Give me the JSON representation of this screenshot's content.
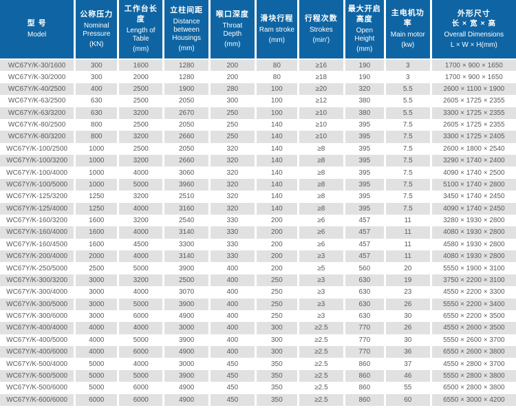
{
  "colors": {
    "header_bg": "#0f65a3",
    "header_text": "#ffffff",
    "row_stripe": "#e1e1e1",
    "body_text": "#58595b"
  },
  "table": {
    "columns": [
      {
        "key": "model",
        "zh": "型 号",
        "zh2": "",
        "en": "Model",
        "unit": ""
      },
      {
        "key": "nominal-pressure",
        "zh": "公称压力",
        "zh2": "",
        "en": "Nominal Pressure",
        "unit": "(KN)"
      },
      {
        "key": "table-length",
        "zh": "工作台长度",
        "zh2": "",
        "en": "Length of Table",
        "unit": "(mm)"
      },
      {
        "key": "housing-distance",
        "zh": "立柱间距",
        "zh2": "",
        "en": "Distance between Housings",
        "unit": "(mm)"
      },
      {
        "key": "throat-depth",
        "zh": "喉口深度",
        "zh2": "",
        "en": "Throat Depth",
        "unit": "(mm)"
      },
      {
        "key": "ram-stroke",
        "zh": "滑块行程",
        "zh2": "",
        "en": "Ram stroke",
        "unit": "(mm)"
      },
      {
        "key": "strokes",
        "zh": "行程次数",
        "zh2": "",
        "en": "Strokes",
        "unit": "(min')"
      },
      {
        "key": "open-height",
        "zh": "最大开启高度",
        "zh2": "",
        "en": "Open Height",
        "unit": "(mm)"
      },
      {
        "key": "main-motor",
        "zh": "主电机功率",
        "zh2": "",
        "en": "Main motor",
        "unit": "(kw)"
      },
      {
        "key": "overall-dimensions",
        "zh": "外形尺寸",
        "zh2": "长 × 宽 × 高",
        "en": "Overall Dimensions",
        "unit": "L × W × H(mm)"
      }
    ],
    "rows": [
      [
        "WC67Y/K-30/1600",
        "300",
        "1600",
        "1280",
        "200",
        "80",
        "≥16",
        "190",
        "3",
        "1700 × 900 × 1650"
      ],
      [
        "WC67Y/K-30/2000",
        "300",
        "2000",
        "1280",
        "200",
        "80",
        "≥18",
        "190",
        "3",
        "1700 × 900 × 1650"
      ],
      [
        "WC67Y/K-40/2500",
        "400",
        "2500",
        "1900",
        "280",
        "100",
        "≥20",
        "320",
        "5.5",
        "2600 × 1100 × 1900"
      ],
      [
        "WC67Y/K-63/2500",
        "630",
        "2500",
        "2050",
        "300",
        "100",
        "≥12",
        "380",
        "5.5",
        "2605 × 1725 × 2355"
      ],
      [
        "WC67Y/K-63/3200",
        "630",
        "3200",
        "2670",
        "250",
        "100",
        "≥10",
        "380",
        "5.5",
        "3300 × 1725 × 2355"
      ],
      [
        "WC67Y/K-80/2500",
        "800",
        "2500",
        "2050",
        "250",
        "140",
        "≥10",
        "395",
        "7.5",
        "2605 × 1725 × 2355"
      ],
      [
        "WC67Y/K-80/3200",
        "800",
        "3200",
        "2660",
        "250",
        "140",
        "≥10",
        "395",
        "7.5",
        "3300 × 1725 × 2405"
      ],
      [
        "WC67Y/K-100/2500",
        "1000",
        "2500",
        "2050",
        "320",
        "140",
        "≥8",
        "395",
        "7.5",
        "2600 × 1800 × 2540"
      ],
      [
        "WC67Y/K-100/3200",
        "1000",
        "3200",
        "2660",
        "320",
        "140",
        "≥8",
        "395",
        "7.5",
        "3290 × 1740 × 2400"
      ],
      [
        "WC67Y/K-100/4000",
        "1000",
        "4000",
        "3060",
        "320",
        "140",
        "≥8",
        "395",
        "7.5",
        "4090 × 1740 × 2500"
      ],
      [
        "WC67Y/K-100/5000",
        "1000",
        "5000",
        "3960",
        "320",
        "140",
        "≥8",
        "395",
        "7.5",
        "5100 × 1740 × 2800"
      ],
      [
        "WC67Y/K-125/3200",
        "1250",
        "3200",
        "2510",
        "320",
        "140",
        "≥8",
        "395",
        "7.5",
        "3450 × 1740 × 2450"
      ],
      [
        "WC67Y/K-125/4000",
        "1250",
        "4000",
        "3160",
        "320",
        "140",
        "≥8",
        "395",
        "7.5",
        "4090 × 1740 × 2450"
      ],
      [
        "WC67Y/K-160/3200",
        "1600",
        "3200",
        "2540",
        "330",
        "200",
        "≥6",
        "457",
        "11",
        "3280 × 1930 × 2800"
      ],
      [
        "WC67Y/K-160/4000",
        "1600",
        "4000",
        "3140",
        "330",
        "200",
        "≥6",
        "457",
        "11",
        "4080 × 1930 × 2800"
      ],
      [
        "WC67Y/K-160/4500",
        "1600",
        "4500",
        "3300",
        "330",
        "200",
        "≥6",
        "457",
        "11",
        "4580 × 1930 × 2800"
      ],
      [
        "WC67Y/K-200/4000",
        "2000",
        "4000",
        "3140",
        "330",
        "200",
        "≥3",
        "457",
        "11",
        "4080 × 1930 × 2800"
      ],
      [
        "WC67Y/K-250/5000",
        "2500",
        "5000",
        "3900",
        "400",
        "200",
        "≥5",
        "560",
        "20",
        "5550 × 1900 × 3100"
      ],
      [
        "WC67Y/K-300/3200",
        "3000",
        "3200",
        "2500",
        "400",
        "250",
        "≥3",
        "630",
        "19",
        "3750 × 2200 × 3100"
      ],
      [
        "WC67Y/K-300/4000",
        "3000",
        "4000",
        "3070",
        "400",
        "250",
        "≥3",
        "630",
        "23",
        "4550 × 2200 × 3300"
      ],
      [
        "WC67Y/K-300/5000",
        "3000",
        "5000",
        "3900",
        "400",
        "250",
        "≥3",
        "630",
        "26",
        "5550 × 2200 × 3400"
      ],
      [
        "WC67Y/K-300/6000",
        "3000",
        "6000",
        "4900",
        "400",
        "250",
        "≥3",
        "630",
        "30",
        "6550 × 2200 × 3500"
      ],
      [
        "WC67Y/K-400/4000",
        "4000",
        "4000",
        "3000",
        "400",
        "300",
        "≥2.5",
        "770",
        "26",
        "4550 × 2600 × 3500"
      ],
      [
        "WC67Y/K-400/5000",
        "4000",
        "5000",
        "3900",
        "400",
        "300",
        "≥2.5",
        "770",
        "30",
        "5550 × 2600 × 3700"
      ],
      [
        "WC67Y/K-400/6000",
        "4000",
        "6000",
        "4900",
        "400",
        "300",
        "≥2.5",
        "770",
        "36",
        "6550 × 2600 × 3800"
      ],
      [
        "WC67Y/K-500/4000",
        "5000",
        "4000",
        "3000",
        "450",
        "350",
        "≥2.5",
        "860",
        "37",
        "4550 × 2800 × 3700"
      ],
      [
        "WC67Y/K-500/5000",
        "5000",
        "5000",
        "3900",
        "450",
        "350",
        "≥2.5",
        "860",
        "46",
        "5550 × 2800 × 3800"
      ],
      [
        "WC67Y/K-500/6000",
        "5000",
        "6000",
        "4900",
        "450",
        "350",
        "≥2.5",
        "860",
        "55",
        "6500 × 2800 × 3800"
      ],
      [
        "WC67Y/K-600/6000",
        "6000",
        "6000",
        "4900",
        "450",
        "350",
        "≥2.5",
        "860",
        "60",
        "6550 × 3000 × 4200"
      ]
    ]
  }
}
